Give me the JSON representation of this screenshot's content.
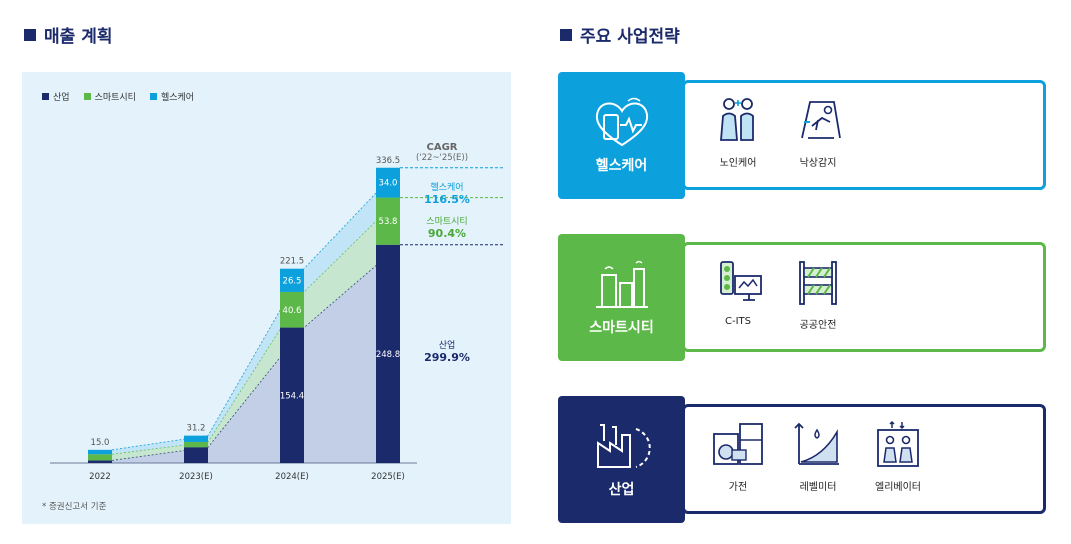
{
  "left_title": "매출 계획",
  "right_title": "주요 사업전략",
  "legend": [
    {
      "label": "산업",
      "color": "#1b2a6b"
    },
    {
      "label": "스마트시티",
      "color": "#5cb848"
    },
    {
      "label": "헬스케어",
      "color": "#0ca0dc"
    }
  ],
  "cagr_header": {
    "title": "CAGR",
    "period": "('22~'25(E))"
  },
  "cagr": [
    {
      "name": "헬스케어",
      "value": "116.5%",
      "color": "#0ca0dc"
    },
    {
      "name": "스마트시티",
      "value": "90.4%",
      "color": "#4aa838"
    },
    {
      "name": "산업",
      "value": "299.9%",
      "color": "#1b2a6b"
    }
  ],
  "footnote": "* 증권신고서 기준",
  "chart_data": {
    "type": "bar",
    "stacked": true,
    "categories": [
      "2022",
      "2023(E)",
      "2024(E)",
      "2025(E)"
    ],
    "series": [
      {
        "name": "산업",
        "color": "#1b2a6b",
        "values": [
          3.0,
          18.0,
          154.4,
          248.8
        ],
        "labels": [
          "",
          "",
          "154.4",
          "248.8"
        ]
      },
      {
        "name": "스마트시티",
        "color": "#5cb848",
        "values": [
          7.0,
          6.0,
          40.6,
          53.8
        ],
        "labels": [
          "",
          "",
          "40.6",
          "53.8"
        ]
      },
      {
        "name": "헬스케어",
        "color": "#0ca0dc",
        "values": [
          5.0,
          7.2,
          26.5,
          34.0
        ],
        "labels": [
          "",
          "",
          "26.5",
          "34.0"
        ]
      }
    ],
    "totals": [
      "15.0",
      "31.2",
      "221.5",
      "336.5"
    ],
    "ylim": [
      0,
      350
    ]
  },
  "strategies": [
    {
      "title": "헬스케어",
      "color": "#0ca0dc",
      "items": [
        {
          "label": "노인케어",
          "icon": "elderly-care-icon"
        },
        {
          "label": "낙상감지",
          "icon": "fall-detection-icon"
        }
      ]
    },
    {
      "title": "스마트시티",
      "color": "#5cb848",
      "items": [
        {
          "label": "C-ITS",
          "icon": "traffic-light-icon"
        },
        {
          "label": "공공안전",
          "icon": "barrier-icon"
        }
      ]
    },
    {
      "title": "산업",
      "color": "#1b2a6b",
      "items": [
        {
          "label": "가전",
          "icon": "appliance-icon"
        },
        {
          "label": "레벨미터",
          "icon": "level-meter-icon"
        },
        {
          "label": "엘리베이터",
          "icon": "elevator-icon"
        }
      ]
    }
  ]
}
